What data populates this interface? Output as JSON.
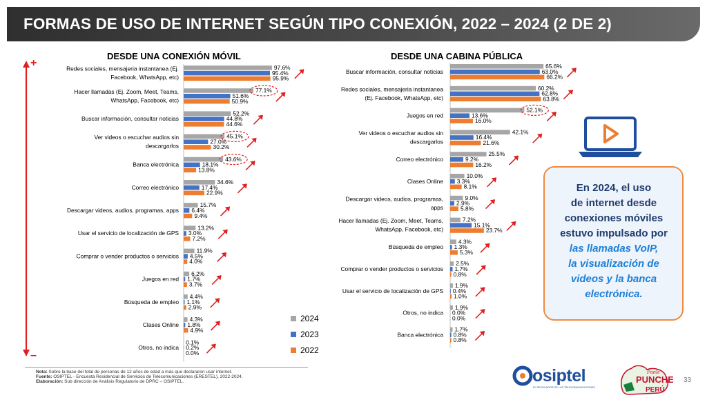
{
  "title": "FORMAS DE USO DE INTERNET SEGÚN TIPO CONEXIÓN, 2022 – 2024 (2 DE 2)",
  "scale_plus": "+",
  "scale_minus": "–",
  "chart_data": [
    {
      "type": "bar",
      "orientation": "horizontal",
      "title": "DESDE UNA CONEXIÓN MÓVIL",
      "series_names": [
        "2024",
        "2023",
        "2022"
      ],
      "categories": [
        [
          "Redes sociales, mensajeria instantanea (Ej.",
          "Facebook, WhatsApp, etc)"
        ],
        [
          "Hacer llamadas (Ej. Zoom, Meet, Teams,",
          "WhatsApp, Facebook, etc)"
        ],
        [
          "Buscar información, consultar noticias"
        ],
        [
          "Ver videos o escuchar audios sin",
          "descargarlos"
        ],
        [
          "Banca electrónica"
        ],
        [
          "Correo electrónico"
        ],
        [
          "Descargar videos, audios, programas, apps"
        ],
        [
          "Usar el servicio de localización de GPS"
        ],
        [
          "Comprar o vender productos o servicios"
        ],
        [
          "Juegos en red"
        ],
        [
          "Búsqueda de empleo"
        ],
        [
          "Clases Online"
        ],
        [
          "Otros, no indica"
        ]
      ],
      "series": [
        {
          "name": "2024",
          "values": [
            97.6,
            77.1,
            52.2,
            45.1,
            43.6,
            34.6,
            15.7,
            13.2,
            11.9,
            6.2,
            4.4,
            4.3,
            0.1
          ]
        },
        {
          "name": "2023",
          "values": [
            95.4,
            51.6,
            44.8,
            27.0,
            18.1,
            17.4,
            6.4,
            3.0,
            4.5,
            1.7,
            1.1,
            1.8,
            0.2
          ]
        },
        {
          "name": "2022",
          "values": [
            95.9,
            50.9,
            44.6,
            30.2,
            13.8,
            22.9,
            9.4,
            7.2,
            4.0,
            3.7,
            2.9,
            4.9,
            0.0
          ]
        }
      ],
      "labels": [
        [
          "97.6%",
          "95.4%",
          "95.9%"
        ],
        [
          "77.1%",
          "51.6%",
          "50.9%"
        ],
        [
          "52.2%",
          "44.8%",
          "44.6%"
        ],
        [
          "45.1%",
          "27.0%",
          "30.2%"
        ],
        [
          "43.6%",
          "18.1%",
          "13.8%"
        ],
        [
          "34.6%",
          "17.4%",
          "22.9%"
        ],
        [
          "15.7%",
          "6.4%",
          "9.4%"
        ],
        [
          "13.2%",
          "3.0%",
          "7.2%"
        ],
        [
          "11.9%",
          "4.5%",
          "4.0%"
        ],
        [
          "6.2%",
          "1.7%",
          "3.7%"
        ],
        [
          "4.4%",
          "1.1%",
          "2.9%"
        ],
        [
          "4.3%",
          "1.8%",
          "4.9%"
        ],
        [
          "0.1%",
          "0.2%",
          "0.0%"
        ]
      ],
      "highlighted": [
        1,
        3,
        4
      ],
      "xlim": [
        0,
        100
      ]
    },
    {
      "type": "bar",
      "orientation": "horizontal",
      "title": "DESDE UNA CABINA PÚBLICA",
      "series_names": [
        "2024",
        "2023",
        "2022"
      ],
      "categories": [
        [
          "Buscar información, consultar noticias"
        ],
        [
          "Redes sociales, mensajeria instantanea",
          "(Ej. Facebook, WhatsApp, etc)"
        ],
        [
          "Juegos en red"
        ],
        [
          "Ver videos o escuchar audios sin",
          "descargarlos"
        ],
        [
          "Correo electrónico"
        ],
        [
          "Clases Online"
        ],
        [
          "Descargar videos, audios, programas,",
          "apps"
        ],
        [
          "Hacer llamadas (Ej. Zoom, Meet, Teams,",
          "WhatsApp, Facebook, etc)"
        ],
        [
          "Búsqueda de empleo"
        ],
        [
          "Comprar o vender productos o servicios"
        ],
        [
          "Usar el servicio de localización de GPS"
        ],
        [
          "Otros, no indica"
        ],
        [
          "Banca electrónica"
        ]
      ],
      "series": [
        {
          "name": "2024",
          "values": [
            65.6,
            60.2,
            52.1,
            42.1,
            25.5,
            10.0,
            9.0,
            7.2,
            4.3,
            2.5,
            1.9,
            1.9,
            1.7
          ]
        },
        {
          "name": "2023",
          "values": [
            63.0,
            62.8,
            13.6,
            16.4,
            9.2,
            3.3,
            2.9,
            15.1,
            1.3,
            1.7,
            0.4,
            0.0,
            0.8
          ]
        },
        {
          "name": "2022",
          "values": [
            66.2,
            63.8,
            16.0,
            21.6,
            16.2,
            8.1,
            5.8,
            23.7,
            5.3,
            0.8,
            1.0,
            0.0,
            0.8
          ]
        }
      ],
      "labels": [
        [
          "65.6%",
          "63.0%",
          "66.2%"
        ],
        [
          "60.2%",
          "62.8%",
          "63.8%"
        ],
        [
          "52.1%",
          "13.6%",
          "16.0%"
        ],
        [
          "42.1%",
          "16.4%",
          "21.6%"
        ],
        [
          "25.5%",
          "9.2%",
          "16.2%"
        ],
        [
          "10.0%",
          "3.3%",
          "8.1%"
        ],
        [
          "9.0%",
          "2.9%",
          "5.8%"
        ],
        [
          "7.2%",
          "15.1%",
          "23.7%"
        ],
        [
          "4.3%",
          "1.3%",
          "5.3%"
        ],
        [
          "2.5%",
          "1.7%",
          "0.8%"
        ],
        [
          "1.9%",
          "0.4%",
          "1.0%"
        ],
        [
          "1.9%",
          "0.0%",
          "0.0%"
        ],
        [
          "1.7%",
          "0.8%",
          "0.8%"
        ]
      ],
      "highlighted": [
        2
      ],
      "xlim": [
        0,
        100
      ]
    }
  ],
  "legend": [
    {
      "label": "2024",
      "color": "#a6a6a6"
    },
    {
      "label": "2023",
      "color": "#4472c4"
    },
    {
      "label": "2022",
      "color": "#ed7d31"
    }
  ],
  "colors": {
    "arrow": "#e02020",
    "highlight_ellipse": "#e02020",
    "callout_border": "#f08a3c",
    "laptop": "#1f4e9c",
    "play": "#ed7d31"
  },
  "callout": {
    "line1": "En 2024, el uso",
    "line2": "de internet desde",
    "line3": "conexiones móviles",
    "line4": "estuvo impulsado por",
    "highlight1": "las llamadas VoIP,",
    "highlight2": "la visualización de",
    "highlight3": "videos y  la banca",
    "highlight4": "electrónica."
  },
  "footnotes": {
    "note_label": "Nota:",
    "note_text": " Sobre la base del total de personas de 12 años de edad a más que declararon usar internet.",
    "source_label": "Fuente:",
    "source_text": " OSIPTEL - Encuesta Residencial de Servicios de Telecomunicaciones (ERESTEL), 2022-2024.",
    "elab_label": "Elaboración:",
    "elab_text": " Sub dirección de Análisis Regulatorio de DPRC – OSIPTEL."
  },
  "logo": {
    "word": "osiptel",
    "tagline": "EL REGULADOR DE LAS TELECOMUNICACIONES",
    "punche_text": "Ponle PUNCHE y ponemos todo PERÚ"
  },
  "page_number": "33"
}
